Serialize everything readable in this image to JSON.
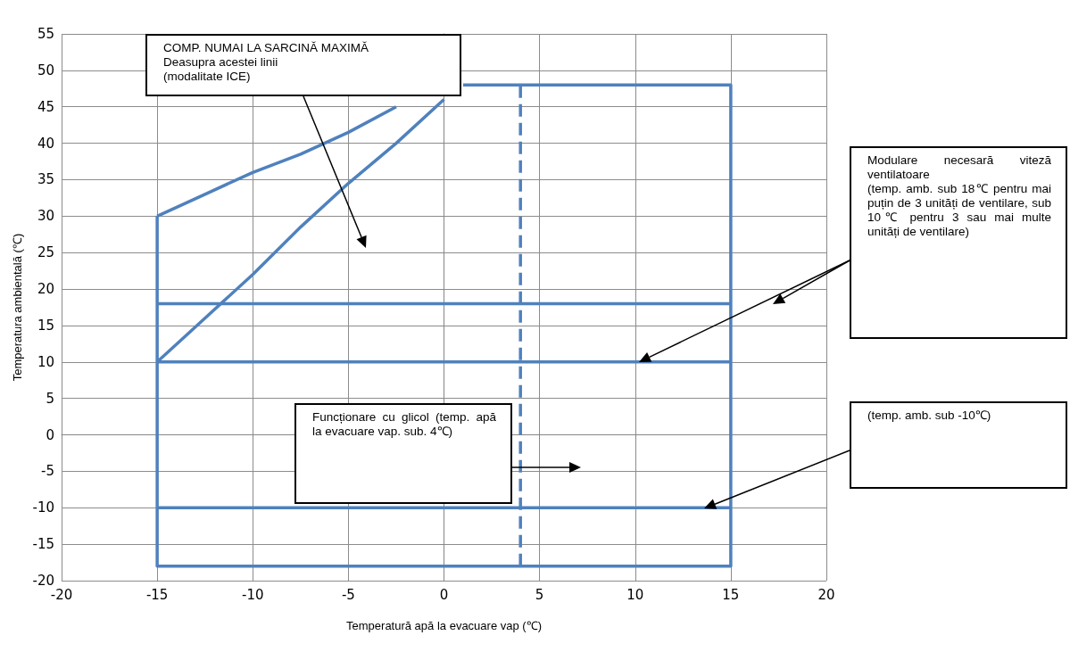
{
  "chart_data": {
    "type": "line",
    "xlabel": "Temperatură apă la evacuare vap (℃)",
    "ylabel": "Temperatura ambientală (℃)",
    "xlim": [
      -20,
      20
    ],
    "xticks": [
      -20,
      -15,
      -10,
      -5,
      0,
      5,
      10,
      15,
      20
    ],
    "ylim": [
      -20,
      55
    ],
    "yticks": [
      -20,
      -15,
      -10,
      -5,
      0,
      5,
      10,
      15,
      20,
      25,
      30,
      35,
      40,
      45,
      50,
      55
    ],
    "grid": true,
    "marker": "none",
    "line_style": "solid",
    "series": [
      {
        "color": "#4f81bd",
        "x": [
          -15,
          -15,
          15,
          15,
          1
        ],
        "values": [
          30,
          -18,
          -18,
          48,
          48
        ]
      },
      {
        "color": "#4f81bd",
        "x": [
          -15,
          -12.5,
          -10,
          -7.5,
          -5,
          -2.5
        ],
        "values": [
          30,
          33,
          36,
          38.5,
          41.5,
          45
        ]
      },
      {
        "color": "#4f81bd",
        "x": [
          -15,
          -12.5,
          -10,
          -7.5,
          -5,
          -2.5,
          0
        ],
        "values": [
          10,
          16,
          22,
          28.5,
          34.5,
          40,
          46
        ]
      },
      {
        "color": "#4f81bd",
        "x": [
          -15,
          15
        ],
        "values": [
          18,
          18
        ]
      },
      {
        "color": "#4f81bd",
        "x": [
          -15,
          15
        ],
        "values": [
          10,
          10
        ]
      },
      {
        "color": "#4f81bd",
        "x": [
          -15,
          15
        ],
        "values": [
          -10,
          -10
        ]
      },
      {
        "color": "#4f81bd",
        "x": [
          4,
          4
        ],
        "values": [
          -18,
          48
        ],
        "line_style": "dashed"
      }
    ],
    "annotations": [
      "COMP. NUMAI LA SARCINĂ MAXIMĂ\nDeasupra acestei linii\n(modalitate ICE)",
      "Modulare necesară viteză ventilatoare\n(temp. amb. sub 18℃ pentru mai puțin de 3 unități de ventilare, sub 10℃ pentru 3 sau mai multe unități de ventilare)",
      "Funcționare cu glicol (temp. apă la evacuare vap. sub. 4℃)",
      "(temp. amb. sub -10℃)"
    ]
  }
}
